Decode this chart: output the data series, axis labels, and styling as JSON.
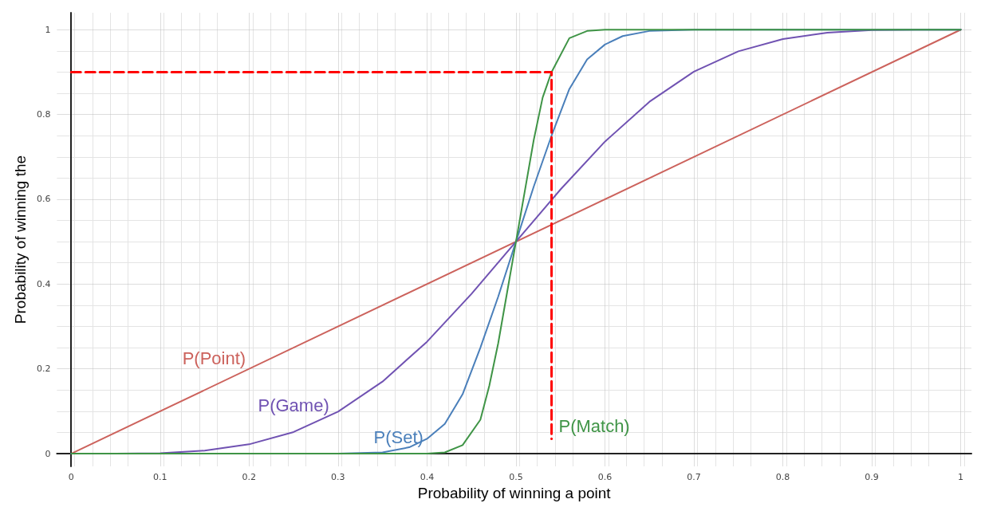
{
  "chart_data": {
    "type": "line",
    "xlabel": "Probability of winning a point",
    "ylabel": "Probability of winning the",
    "xlim": [
      -0.016,
      1.012
    ],
    "ylim": [
      -0.03,
      1.04
    ],
    "xticks": [
      0,
      0.1,
      0.2,
      0.3,
      0.4,
      0.5,
      0.6,
      0.7,
      0.8,
      0.9,
      1
    ],
    "yticks": [
      0,
      0.2,
      0.4,
      0.6,
      0.8,
      1
    ],
    "grid": true,
    "marker": "none",
    "series": [
      {
        "name": "P(Point)",
        "color": "#cc625c",
        "x": [
          0,
          1
        ],
        "values": [
          0,
          1
        ]
      },
      {
        "name": "P(Game)",
        "color": "#7052b2",
        "x": [
          0,
          0.05,
          0.1,
          0.15,
          0.2,
          0.25,
          0.3,
          0.35,
          0.4,
          0.45,
          0.5,
          0.55,
          0.6,
          0.65,
          0.7,
          0.75,
          0.8,
          0.85,
          0.9,
          0.95,
          1
        ],
        "values": [
          0,
          0,
          0.001,
          0.007,
          0.022,
          0.051,
          0.099,
          0.17,
          0.264,
          0.377,
          0.5,
          0.623,
          0.736,
          0.83,
          0.901,
          0.949,
          0.978,
          0.993,
          0.999,
          1,
          1
        ]
      },
      {
        "name": "P(Set)",
        "color": "#4a7fba",
        "x": [
          0,
          0.3,
          0.35,
          0.38,
          0.4,
          0.42,
          0.44,
          0.46,
          0.48,
          0.5,
          0.52,
          0.54,
          0.56,
          0.58,
          0.6,
          0.62,
          0.65,
          0.7,
          1
        ],
        "values": [
          0,
          0,
          0.003,
          0.015,
          0.035,
          0.07,
          0.14,
          0.25,
          0.37,
          0.5,
          0.63,
          0.75,
          0.86,
          0.93,
          0.965,
          0.985,
          0.997,
          1,
          1
        ]
      },
      {
        "name": "P(Match)",
        "color": "#3f9446",
        "x": [
          0,
          0.4,
          0.42,
          0.44,
          0.46,
          0.47,
          0.48,
          0.49,
          0.5,
          0.51,
          0.52,
          0.53,
          0.54,
          0.56,
          0.58,
          0.6,
          1
        ],
        "values": [
          0,
          0,
          0.003,
          0.02,
          0.08,
          0.16,
          0.26,
          0.38,
          0.5,
          0.62,
          0.74,
          0.84,
          0.9,
          0.98,
          0.997,
          1,
          1
        ]
      },
      {
        "color": "#ff0000",
        "line_style": "dashed",
        "x": [
          0,
          0.54,
          0.54
        ],
        "values": [
          0.9,
          0.9,
          0.035
        ]
      }
    ]
  }
}
